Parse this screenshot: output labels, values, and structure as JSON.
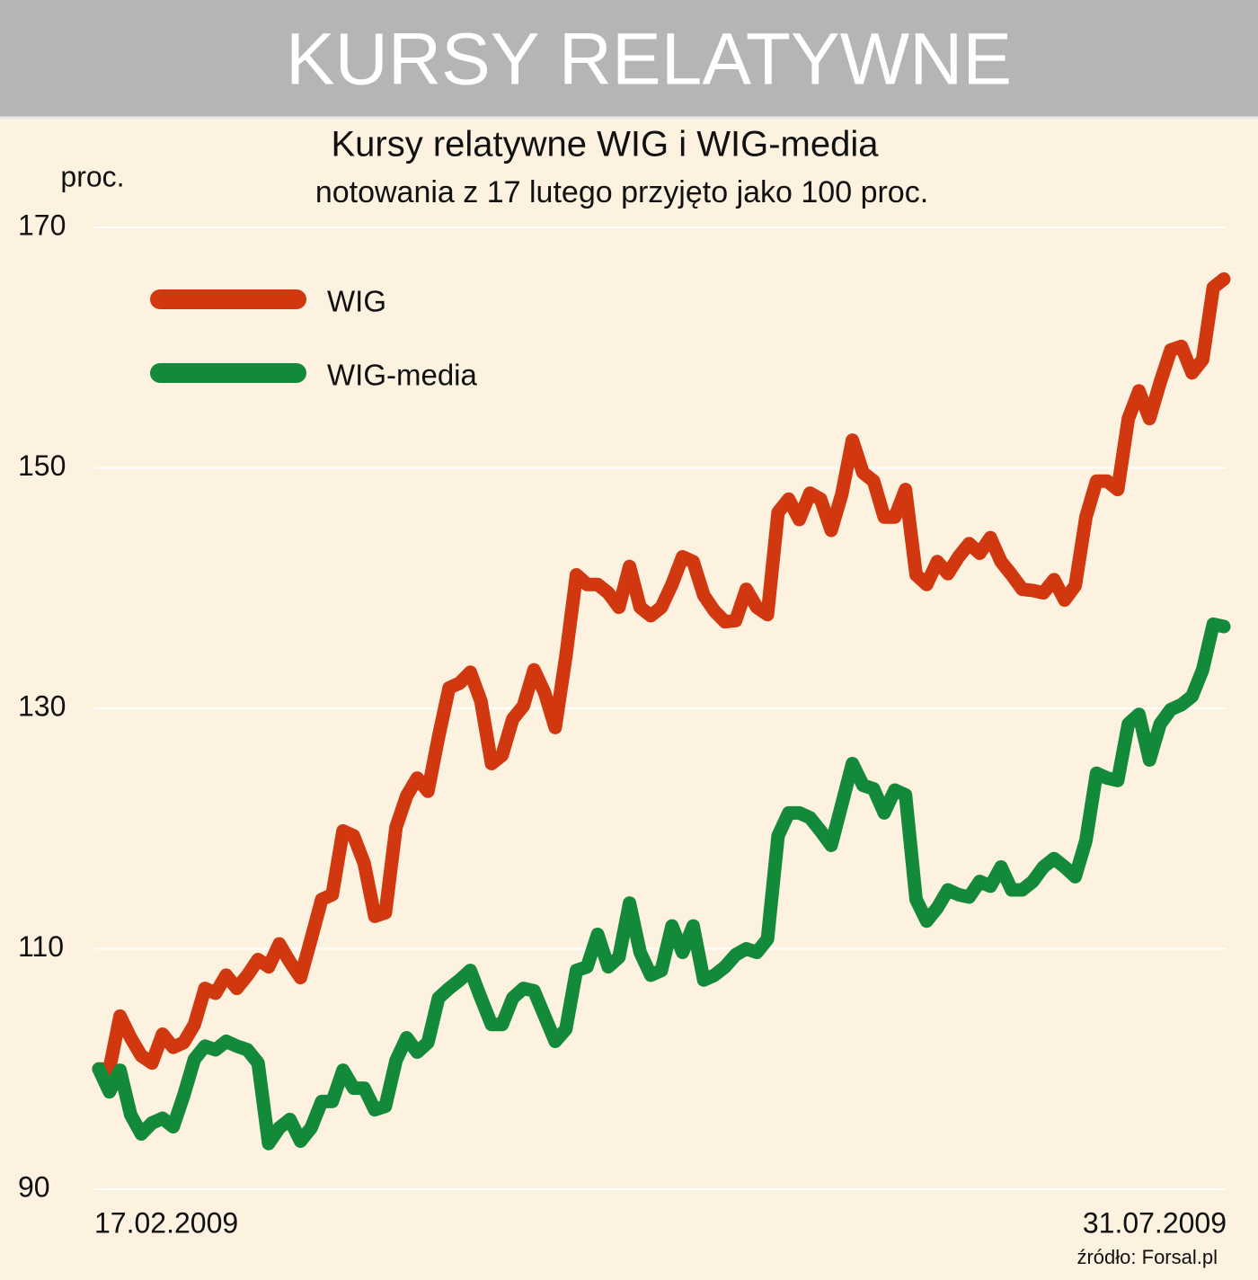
{
  "header": {
    "title": "KURSY RELATYWNE"
  },
  "chart_data": {
    "type": "line",
    "title": "Kursy relatywne WIG i WIG-media",
    "subtitle": "notowania z 17 lutego przyjęto jako 100 proc.",
    "y_label": "proc.",
    "source": "źródło: Forsal.pl",
    "categories": [
      "17.02.2009",
      null,
      null,
      null,
      null,
      null,
      null,
      null,
      null,
      null,
      null,
      null,
      null,
      null,
      null,
      null,
      null,
      null,
      null,
      null,
      null,
      null,
      null,
      null,
      null,
      null,
      null,
      null,
      null,
      null,
      null,
      null,
      null,
      null,
      null,
      null,
      null,
      null,
      null,
      null,
      null,
      null,
      null,
      null,
      null,
      null,
      null,
      null,
      null,
      null,
      null,
      null,
      null,
      null,
      null,
      null,
      null,
      null,
      null,
      null,
      null,
      null,
      null,
      null,
      null,
      null,
      null,
      null,
      null,
      null,
      null,
      null,
      null,
      null,
      null,
      null,
      null,
      null,
      null,
      null,
      null,
      null,
      null,
      null,
      null,
      null,
      null,
      null,
      null,
      null,
      null,
      null,
      null,
      null,
      null,
      null,
      null,
      null,
      null,
      null,
      null,
      null,
      null,
      null,
      null,
      null,
      "31.07.2009"
    ],
    "series": [
      {
        "name": "WIG",
        "color": "#d2380f",
        "values": [
          100.0,
          100.0,
          104.4,
          102.6,
          101.1,
          100.5,
          102.9,
          101.8,
          102.2,
          103.7,
          106.7,
          106.3,
          107.8,
          106.7,
          107.8,
          109.1,
          108.5,
          110.4,
          108.9,
          107.6,
          110.8,
          114.1,
          114.5,
          119.8,
          119.4,
          117.1,
          112.7,
          113.0,
          120.1,
          122.7,
          124.2,
          123.1,
          127.6,
          131.7,
          132.1,
          133.0,
          130.6,
          125.4,
          126.1,
          129.1,
          130.2,
          133.2,
          131.3,
          128.4,
          134.3,
          141.1,
          140.3,
          140.3,
          139.6,
          138.4,
          141.8,
          138.4,
          137.7,
          138.4,
          140.3,
          142.6,
          142.2,
          139.4,
          138.1,
          137.2,
          137.3,
          139.9,
          138.4,
          137.8,
          146.3,
          147.4,
          145.7,
          147.9,
          147.4,
          144.8,
          147.8,
          152.3,
          149.6,
          148.9,
          145.9,
          145.9,
          148.2,
          141.1,
          140.3,
          142.2,
          141.2,
          142.6,
          143.7,
          142.9,
          144.2,
          142.2,
          141.1,
          139.9,
          139.8,
          139.6,
          140.7,
          139.0,
          140.2,
          145.9,
          148.9,
          148.9,
          148.2,
          154.1,
          156.4,
          154.1,
          157.1,
          159.8,
          160.1,
          157.9,
          159.0,
          165.0,
          165.7
        ]
      },
      {
        "name": "WIG-media",
        "color": "#138a3a",
        "values": [
          100.0,
          98.1,
          99.9,
          96.2,
          94.6,
          95.5,
          95.9,
          95.2,
          97.8,
          100.8,
          101.9,
          101.6,
          102.3,
          101.9,
          101.6,
          100.5,
          93.8,
          95.1,
          95.8,
          94.0,
          95.1,
          97.3,
          97.3,
          99.9,
          98.4,
          98.4,
          96.6,
          96.9,
          100.7,
          102.6,
          101.4,
          102.2,
          105.9,
          106.7,
          107.4,
          108.2,
          105.9,
          103.7,
          103.7,
          105.9,
          106.7,
          106.5,
          104.4,
          102.3,
          103.3,
          108.2,
          108.5,
          111.2,
          108.5,
          109.3,
          113.8,
          109.7,
          107.8,
          108.2,
          111.9,
          109.7,
          111.9,
          107.4,
          107.8,
          108.5,
          109.5,
          110.0,
          109.7,
          110.8,
          119.4,
          121.3,
          121.3,
          120.9,
          119.8,
          118.6,
          122.0,
          125.4,
          123.6,
          123.3,
          121.3,
          123.2,
          122.8,
          114.1,
          112.3,
          113.4,
          114.9,
          114.5,
          114.3,
          115.6,
          115.2,
          116.8,
          114.9,
          114.9,
          115.6,
          116.8,
          117.5,
          116.8,
          116.0,
          119.0,
          124.6,
          124.2,
          124.0,
          128.7,
          129.5,
          125.7,
          128.7,
          129.9,
          130.3,
          131.0,
          133.2,
          137.0,
          136.8
        ]
      }
    ],
    "ylim": [
      90,
      170
    ],
    "yticks": [
      90,
      110,
      130,
      150,
      170
    ],
    "grid": true
  }
}
